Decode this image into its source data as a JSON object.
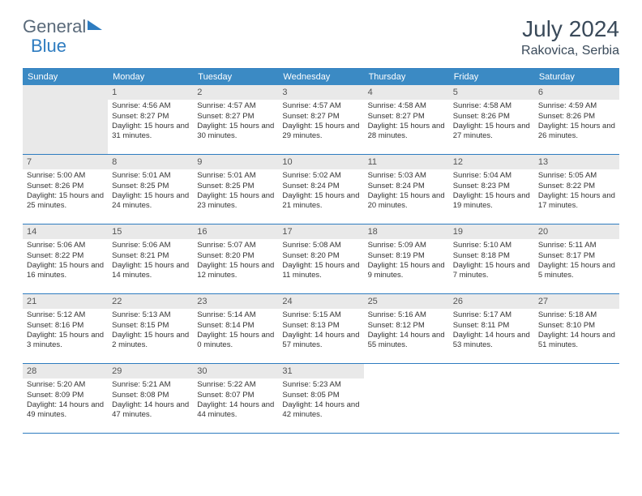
{
  "brand": {
    "part1": "General",
    "part2": "Blue"
  },
  "title": "July 2024",
  "location": "Rakovica, Serbia",
  "colors": {
    "header_bg": "#3b8ac4",
    "accent_border": "#2e7cc0",
    "daynum_bg": "#e9e9e9",
    "text": "#333333",
    "title_text": "#3a4a5a"
  },
  "day_labels": [
    "Sunday",
    "Monday",
    "Tuesday",
    "Wednesday",
    "Thursday",
    "Friday",
    "Saturday"
  ],
  "leading_blanks": 1,
  "days": [
    {
      "n": "1",
      "sunrise": "4:56 AM",
      "sunset": "8:27 PM",
      "daylight": "15 hours and 31 minutes."
    },
    {
      "n": "2",
      "sunrise": "4:57 AM",
      "sunset": "8:27 PM",
      "daylight": "15 hours and 30 minutes."
    },
    {
      "n": "3",
      "sunrise": "4:57 AM",
      "sunset": "8:27 PM",
      "daylight": "15 hours and 29 minutes."
    },
    {
      "n": "4",
      "sunrise": "4:58 AM",
      "sunset": "8:27 PM",
      "daylight": "15 hours and 28 minutes."
    },
    {
      "n": "5",
      "sunrise": "4:58 AM",
      "sunset": "8:26 PM",
      "daylight": "15 hours and 27 minutes."
    },
    {
      "n": "6",
      "sunrise": "4:59 AM",
      "sunset": "8:26 PM",
      "daylight": "15 hours and 26 minutes."
    },
    {
      "n": "7",
      "sunrise": "5:00 AM",
      "sunset": "8:26 PM",
      "daylight": "15 hours and 25 minutes."
    },
    {
      "n": "8",
      "sunrise": "5:01 AM",
      "sunset": "8:25 PM",
      "daylight": "15 hours and 24 minutes."
    },
    {
      "n": "9",
      "sunrise": "5:01 AM",
      "sunset": "8:25 PM",
      "daylight": "15 hours and 23 minutes."
    },
    {
      "n": "10",
      "sunrise": "5:02 AM",
      "sunset": "8:24 PM",
      "daylight": "15 hours and 21 minutes."
    },
    {
      "n": "11",
      "sunrise": "5:03 AM",
      "sunset": "8:24 PM",
      "daylight": "15 hours and 20 minutes."
    },
    {
      "n": "12",
      "sunrise": "5:04 AM",
      "sunset": "8:23 PM",
      "daylight": "15 hours and 19 minutes."
    },
    {
      "n": "13",
      "sunrise": "5:05 AM",
      "sunset": "8:22 PM",
      "daylight": "15 hours and 17 minutes."
    },
    {
      "n": "14",
      "sunrise": "5:06 AM",
      "sunset": "8:22 PM",
      "daylight": "15 hours and 16 minutes."
    },
    {
      "n": "15",
      "sunrise": "5:06 AM",
      "sunset": "8:21 PM",
      "daylight": "15 hours and 14 minutes."
    },
    {
      "n": "16",
      "sunrise": "5:07 AM",
      "sunset": "8:20 PM",
      "daylight": "15 hours and 12 minutes."
    },
    {
      "n": "17",
      "sunrise": "5:08 AM",
      "sunset": "8:20 PM",
      "daylight": "15 hours and 11 minutes."
    },
    {
      "n": "18",
      "sunrise": "5:09 AM",
      "sunset": "8:19 PM",
      "daylight": "15 hours and 9 minutes."
    },
    {
      "n": "19",
      "sunrise": "5:10 AM",
      "sunset": "8:18 PM",
      "daylight": "15 hours and 7 minutes."
    },
    {
      "n": "20",
      "sunrise": "5:11 AM",
      "sunset": "8:17 PM",
      "daylight": "15 hours and 5 minutes."
    },
    {
      "n": "21",
      "sunrise": "5:12 AM",
      "sunset": "8:16 PM",
      "daylight": "15 hours and 3 minutes."
    },
    {
      "n": "22",
      "sunrise": "5:13 AM",
      "sunset": "8:15 PM",
      "daylight": "15 hours and 2 minutes."
    },
    {
      "n": "23",
      "sunrise": "5:14 AM",
      "sunset": "8:14 PM",
      "daylight": "15 hours and 0 minutes."
    },
    {
      "n": "24",
      "sunrise": "5:15 AM",
      "sunset": "8:13 PM",
      "daylight": "14 hours and 57 minutes."
    },
    {
      "n": "25",
      "sunrise": "5:16 AM",
      "sunset": "8:12 PM",
      "daylight": "14 hours and 55 minutes."
    },
    {
      "n": "26",
      "sunrise": "5:17 AM",
      "sunset": "8:11 PM",
      "daylight": "14 hours and 53 minutes."
    },
    {
      "n": "27",
      "sunrise": "5:18 AM",
      "sunset": "8:10 PM",
      "daylight": "14 hours and 51 minutes."
    },
    {
      "n": "28",
      "sunrise": "5:20 AM",
      "sunset": "8:09 PM",
      "daylight": "14 hours and 49 minutes."
    },
    {
      "n": "29",
      "sunrise": "5:21 AM",
      "sunset": "8:08 PM",
      "daylight": "14 hours and 47 minutes."
    },
    {
      "n": "30",
      "sunrise": "5:22 AM",
      "sunset": "8:07 PM",
      "daylight": "14 hours and 44 minutes."
    },
    {
      "n": "31",
      "sunrise": "5:23 AM",
      "sunset": "8:05 PM",
      "daylight": "14 hours and 42 minutes."
    }
  ],
  "labels": {
    "sunrise_prefix": "Sunrise: ",
    "sunset_prefix": "Sunset: ",
    "daylight_prefix": "Daylight: "
  }
}
